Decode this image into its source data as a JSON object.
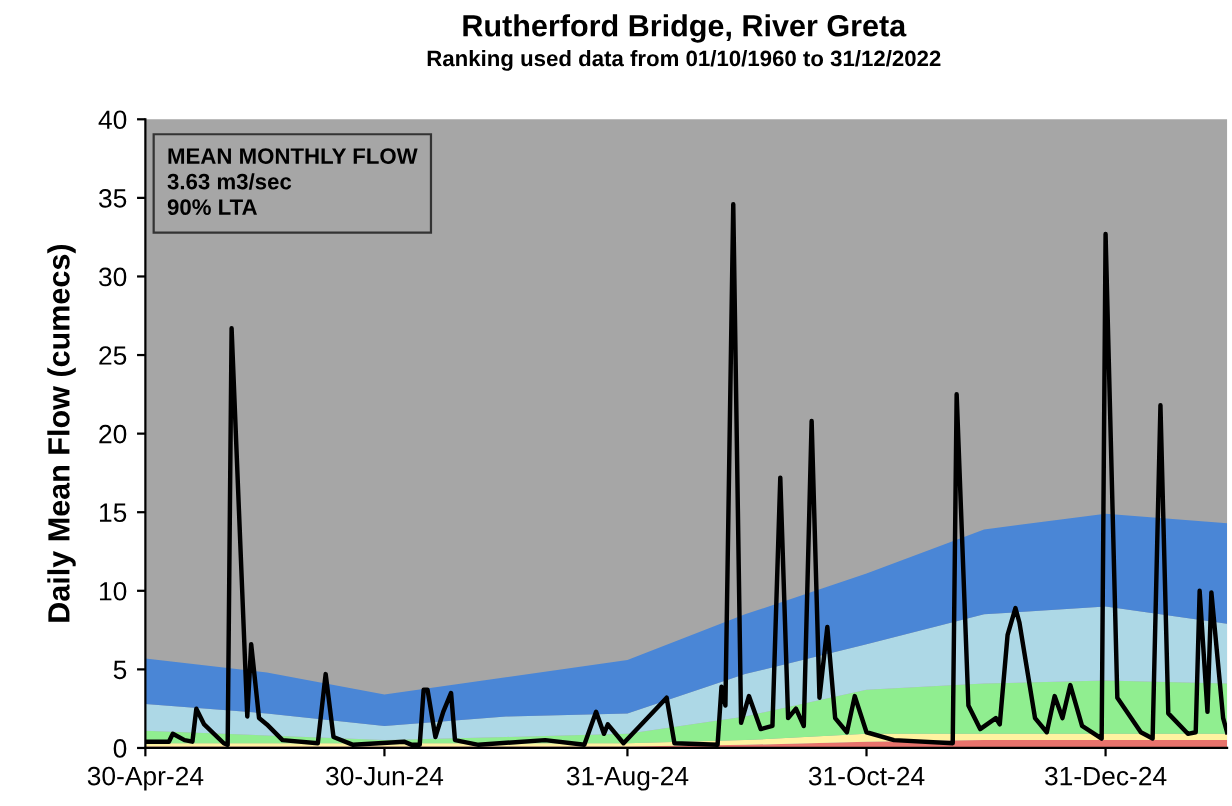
{
  "chart_data": {
    "type": "area",
    "title": "Rutherford Bridge, River Greta",
    "subtitle": "Ranking used data from 01/10/1960 to 31/12/2022",
    "ylabel": "Daily Mean Flow (cumecs)",
    "annotations": [
      "MEAN MONTHLY FLOW",
      "3.63 m3/sec",
      "90% LTA"
    ],
    "stacked": true,
    "series": [
      {
        "color": "#e8736c",
        "x": [
          "2024-04-30",
          "2024-05-31",
          "2024-06-30",
          "2024-07-31",
          "2024-08-31",
          "2024-09-30",
          "2024-10-31",
          "2024-11-30",
          "2024-12-31",
          "2025-01-31"
        ],
        "values": [
          0.1,
          0.1,
          0.1,
          0.1,
          0.1,
          0.2,
          0.4,
          0.5,
          0.5,
          0.5
        ]
      },
      {
        "color": "#fff2a0",
        "x": [
          "2024-04-30",
          "2024-05-31",
          "2024-06-30",
          "2024-07-31",
          "2024-08-31",
          "2024-09-30",
          "2024-10-31",
          "2024-11-30",
          "2024-12-31",
          "2025-01-31"
        ],
        "values": [
          0.2,
          0.2,
          0.2,
          0.2,
          0.2,
          0.3,
          0.5,
          0.4,
          0.4,
          0.4
        ]
      },
      {
        "color": "#90ee90",
        "x": [
          "2024-04-30",
          "2024-05-31",
          "2024-06-30",
          "2024-07-31",
          "2024-08-31",
          "2024-09-30",
          "2024-10-31",
          "2024-11-30",
          "2024-12-31",
          "2025-01-31"
        ],
        "values": [
          0.8,
          0.5,
          0.2,
          0.4,
          0.6,
          1.5,
          2.8,
          3.2,
          3.4,
          3.2
        ]
      },
      {
        "color": "#add8e6",
        "x": [
          "2024-04-30",
          "2024-05-31",
          "2024-06-30",
          "2024-07-31",
          "2024-08-31",
          "2024-09-30",
          "2024-10-31",
          "2024-11-30",
          "2024-12-31",
          "2025-01-31"
        ],
        "values": [
          1.7,
          1.4,
          0.9,
          1.3,
          1.3,
          2.7,
          2.9,
          4.4,
          4.7,
          3.8
        ]
      },
      {
        "color": "#4a86d6",
        "x": [
          "2024-04-30",
          "2024-05-31",
          "2024-06-30",
          "2024-07-31",
          "2024-08-31",
          "2024-09-30",
          "2024-10-31",
          "2024-11-30",
          "2024-12-31",
          "2025-01-31"
        ],
        "values": [
          2.9,
          2.6,
          2.0,
          2.5,
          3.4,
          3.8,
          4.5,
          5.4,
          5.9,
          6.4
        ]
      },
      {
        "type": "line",
        "color": "#000000",
        "x": [
          "2024-04-30",
          "2024-05-06",
          "2024-05-07",
          "2024-05-10",
          "2024-05-12",
          "2024-05-13",
          "2024-05-15",
          "2024-05-20",
          "2024-05-21",
          "2024-05-22",
          "2024-05-26",
          "2024-05-27",
          "2024-05-29",
          "2024-05-31",
          "2024-06-04",
          "2024-06-13",
          "2024-06-15",
          "2024-06-17",
          "2024-06-22",
          "2024-07-05",
          "2024-07-07",
          "2024-07-09",
          "2024-07-10",
          "2024-07-11",
          "2024-07-13",
          "2024-07-15",
          "2024-07-17",
          "2024-07-18",
          "2024-07-24",
          "2024-08-10",
          "2024-08-20",
          "2024-08-23",
          "2024-08-25",
          "2024-08-26",
          "2024-08-30",
          "2024-09-10",
          "2024-09-12",
          "2024-09-23",
          "2024-09-24",
          "2024-09-25",
          "2024-09-27",
          "2024-09-29",
          "2024-10-01",
          "2024-10-04",
          "2024-10-07",
          "2024-10-09",
          "2024-10-11",
          "2024-10-13",
          "2024-10-15",
          "2024-10-17",
          "2024-10-19",
          "2024-10-21",
          "2024-10-23",
          "2024-10-26",
          "2024-10-28",
          "2024-10-31",
          "2024-11-07",
          "2024-11-22",
          "2024-11-23",
          "2024-11-26",
          "2024-11-29",
          "2024-12-03",
          "2024-12-04",
          "2024-12-06",
          "2024-12-08",
          "2024-12-09",
          "2024-12-13",
          "2024-12-16",
          "2024-12-18",
          "2024-12-20",
          "2024-12-22",
          "2024-12-25",
          "2024-12-30",
          "2024-12-31",
          "2025-01-03",
          "2025-01-09",
          "2025-01-12",
          "2025-01-14",
          "2025-01-16",
          "2025-01-21",
          "2025-01-23",
          "2025-01-24",
          "2025-01-26",
          "2025-01-27",
          "2025-01-30",
          "2025-01-31"
        ],
        "values": [
          0.4,
          0.4,
          0.9,
          0.5,
          0.4,
          2.5,
          1.5,
          0.3,
          0.2,
          26.7,
          2.0,
          6.6,
          1.9,
          1.5,
          0.5,
          0.3,
          4.7,
          0.7,
          0.2,
          0.4,
          0.2,
          0.2,
          3.7,
          3.7,
          0.7,
          2.3,
          3.5,
          0.5,
          0.2,
          0.5,
          0.2,
          2.3,
          0.9,
          1.5,
          0.3,
          3.2,
          0.3,
          0.2,
          3.9,
          2.7,
          34.6,
          1.6,
          3.3,
          1.2,
          1.4,
          17.2,
          1.9,
          2.5,
          1.4,
          20.8,
          3.2,
          7.7,
          1.9,
          1.0,
          3.3,
          1.0,
          0.5,
          0.3,
          22.5,
          2.7,
          1.2,
          1.9,
          1.5,
          7.2,
          8.9,
          8.0,
          1.9,
          1.0,
          3.3,
          1.9,
          4.0,
          1.4,
          0.6,
          32.7,
          3.2,
          1.0,
          0.6,
          21.8,
          2.2,
          0.9,
          1.0,
          10.0,
          2.3,
          9.9,
          1.9,
          1.0
        ]
      }
    ],
    "xlim": [
      "2024-04-30",
      "2025-01-31"
    ],
    "xticks": [
      {
        "value": "2024-04-30",
        "label": "30-Apr-24"
      },
      {
        "value": "2024-06-30",
        "label": "30-Jun-24"
      },
      {
        "value": "2024-08-31",
        "label": "31-Aug-24"
      },
      {
        "value": "2024-10-31",
        "label": "31-Oct-24"
      },
      {
        "value": "2024-12-31",
        "label": "31-Dec-24"
      }
    ],
    "ylim": [
      0,
      40
    ],
    "yticks": [
      0,
      5,
      10,
      15,
      20,
      25,
      30,
      35,
      40
    ],
    "grid": false,
    "line_style": "solid",
    "marker": "none"
  }
}
